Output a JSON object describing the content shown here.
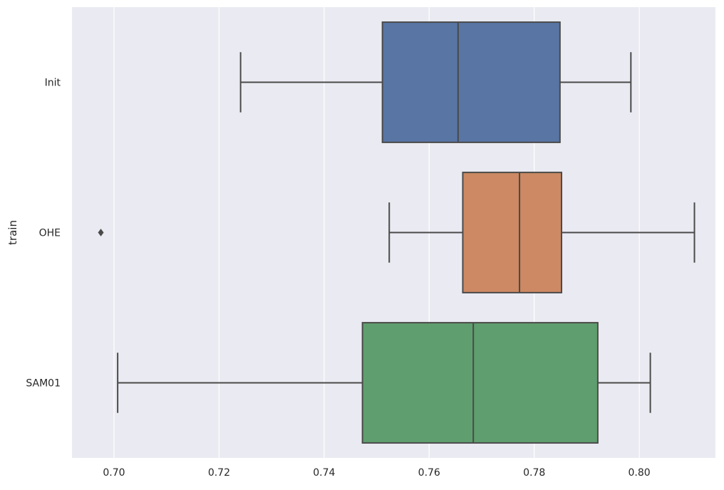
{
  "chart_data": {
    "type": "boxplot",
    "orientation": "horizontal",
    "title": "",
    "xlabel": "",
    "ylabel": "train",
    "xlim": [
      0.692,
      0.8145
    ],
    "x_ticks": [
      0.7,
      0.72,
      0.74,
      0.76,
      0.78,
      0.8
    ],
    "x_tick_labels": [
      "0.70",
      "0.72",
      "0.74",
      "0.76",
      "0.78",
      "0.80"
    ],
    "grid": true,
    "legend": "none",
    "categories": [
      "Init",
      "OHE",
      "SAM01"
    ],
    "boxes": [
      {
        "category": "Init",
        "whisker_low": 0.7241,
        "q1": 0.7511,
        "median": 0.7655,
        "q3": 0.7849,
        "whisker_high": 0.7984,
        "outliers": [],
        "color": "#5875a4"
      },
      {
        "category": "OHE",
        "whisker_low": 0.7524,
        "q1": 0.7664,
        "median": 0.7772,
        "q3": 0.7852,
        "whisker_high": 0.8105,
        "outliers": [
          0.6975
        ],
        "color": "#cc8963"
      },
      {
        "category": "SAM01",
        "whisker_low": 0.7007,
        "q1": 0.7473,
        "median": 0.7684,
        "q3": 0.7921,
        "whisker_high": 0.8021,
        "outliers": [],
        "color": "#5f9e6e"
      }
    ],
    "colors": {
      "background": "#eaeaf2",
      "grid": "#ffffff",
      "line": "#4a4a4a"
    }
  }
}
